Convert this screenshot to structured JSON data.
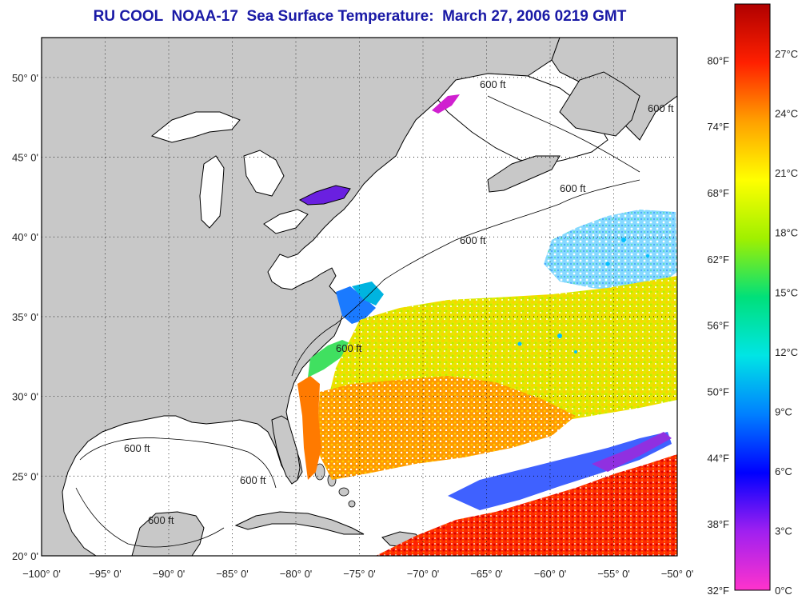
{
  "title": "RU COOL  NOAA-17  Sea Surface Temperature:  March 27, 2006 0219 GMT",
  "map": {
    "lon_range": [
      -100,
      -50
    ],
    "lat_range": [
      20,
      52.5
    ],
    "lon_ticks": [
      -100,
      -95,
      -90,
      -85,
      -80,
      -75,
      -70,
      -65,
      -60,
      -55,
      -50
    ],
    "lat_ticks": [
      20,
      25,
      30,
      35,
      40,
      45,
      50
    ],
    "lon_tick_labels": [
      "−100° 0'",
      "−95° 0'",
      "−90° 0'",
      "−85° 0'",
      "−80° 0'",
      "−75° 0'",
      "−70° 0'",
      "−65° 0'",
      "−60° 0'",
      "−55° 0'",
      "−50° 0'"
    ],
    "lat_tick_labels": [
      "20° 0'",
      "25° 0'",
      "30° 0'",
      "35° 0'",
      "40° 0'",
      "45° 0'",
      "50° 0'"
    ],
    "depth_labels": [
      "600 ft",
      "600 ft",
      "600 ft",
      "600 ft",
      "600 ft",
      "600 ft",
      "600 ft",
      "600 ft"
    ],
    "land_color": "#c8c8c8",
    "ocean_color": "#ffffff",
    "grid": "dotted"
  },
  "colorbar": {
    "fahrenheit_labels": [
      "32°F",
      "38°F",
      "44°F",
      "50°F",
      "56°F",
      "62°F",
      "68°F",
      "74°F",
      "80°F"
    ],
    "celsius_labels": [
      "0°C",
      "3°C",
      "6°C",
      "9°C",
      "12°C",
      "15°C",
      "18°C",
      "21°C",
      "24°C",
      "27°C"
    ],
    "celsius_values": [
      0,
      3,
      6,
      9,
      12,
      15,
      18,
      21,
      24,
      27
    ],
    "fahrenheit_values": [
      32,
      38,
      44,
      50,
      56,
      62,
      68,
      74,
      80
    ],
    "range_celsius": [
      0,
      29.5
    ],
    "gradient_colors": [
      "#ff33cc",
      "#a020f0",
      "#0000ff",
      "#0080ff",
      "#00e5e5",
      "#00e07a",
      "#a0f000",
      "#ffff00",
      "#ffa000",
      "#ff2000",
      "#b00000"
    ]
  }
}
